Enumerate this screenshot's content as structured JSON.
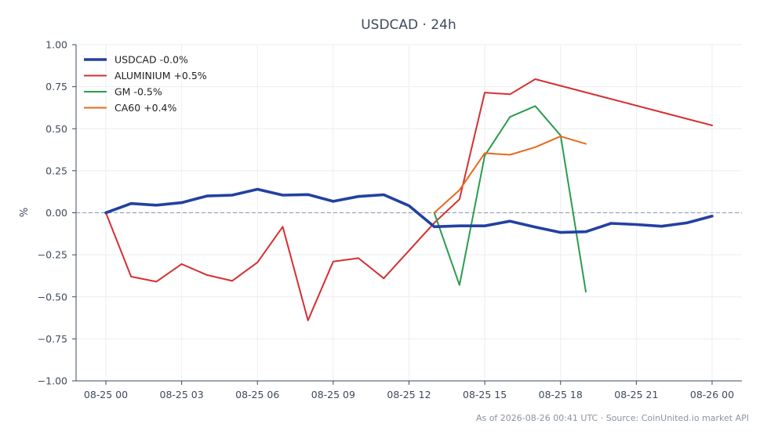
{
  "chart_data": {
    "type": "line",
    "title": "USDCAD · 24h",
    "ylabel": "%",
    "xlabel": "",
    "ylim": [
      -1.0,
      1.0
    ],
    "yticks": [
      1.0,
      0.75,
      0.5,
      0.25,
      0.0,
      -0.25,
      -0.5,
      -0.75,
      -1.0
    ],
    "ytick_labels": [
      "1.00",
      "0.75",
      "0.50",
      "0.25",
      "0.00",
      "−0.25",
      "−0.50",
      "−0.75",
      "−1.00"
    ],
    "xlim": [
      "08-25 00:00",
      "08-26 00:00"
    ],
    "xtick_labels": [
      "08-25 00",
      "08-25 03",
      "08-25 06",
      "08-25 09",
      "08-25 12",
      "08-25 15",
      "08-25 18",
      "08-25 21",
      "08-26 00"
    ],
    "xtick_hours": [
      0,
      3,
      6,
      9,
      12,
      15,
      18,
      21,
      24
    ],
    "grid": true,
    "legend_position": "top-left",
    "zero_line": true,
    "series": [
      {
        "name": "USDCAD -0.0%",
        "color": "#2341a0",
        "hours": [
          0,
          1,
          2,
          3,
          4,
          5,
          6,
          7,
          8,
          9,
          10,
          11,
          12,
          13,
          14,
          15,
          16,
          17,
          18,
          19,
          20,
          21,
          22,
          23,
          24
        ],
        "values": [
          0.0,
          0.055,
          0.045,
          0.06,
          0.1,
          0.105,
          0.14,
          0.105,
          0.108,
          0.068,
          0.097,
          0.107,
          0.042,
          -0.083,
          -0.078,
          -0.078,
          -0.05,
          -0.085,
          -0.117,
          -0.113,
          -0.063,
          -0.07,
          -0.08,
          -0.06,
          -0.02
        ]
      },
      {
        "name": "ALUMINIUM +0.5%",
        "color": "#d62f2f",
        "hours": [
          0,
          1,
          2,
          3,
          4,
          5,
          6,
          7,
          8,
          9,
          10,
          11,
          12,
          13,
          14,
          15,
          16,
          17,
          24
        ],
        "values": [
          0.0,
          -0.38,
          -0.41,
          -0.305,
          -0.37,
          -0.405,
          -0.295,
          -0.083,
          -0.64,
          -0.29,
          -0.27,
          -0.39,
          -0.225,
          -0.06,
          0.08,
          0.715,
          0.705,
          0.795,
          0.52
        ]
      },
      {
        "name": "GM -0.5%",
        "color": "#2a9d4c",
        "hours": [
          13,
          14,
          15,
          16,
          17,
          18,
          19
        ],
        "values": [
          0.0,
          -0.43,
          0.34,
          0.57,
          0.635,
          0.46,
          -0.47
        ]
      },
      {
        "name": "CA60 +0.4%",
        "color": "#e8691e",
        "hours": [
          13,
          14,
          15,
          16,
          17,
          18,
          19
        ],
        "values": [
          0.0,
          0.135,
          0.355,
          0.345,
          0.39,
          0.455,
          0.41
        ]
      }
    ]
  },
  "footer": {
    "text": "As of 2026-08-26 00:41 UTC · Source: CoinUnited.io market API"
  }
}
